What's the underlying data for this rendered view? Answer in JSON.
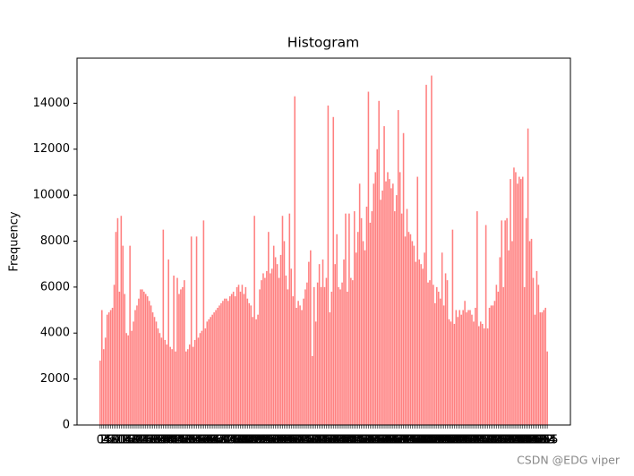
{
  "chart_data": {
    "type": "bar",
    "title": "Histogram",
    "y_label": "Frequency",
    "color": "#ff8080",
    "x": [
      0,
      1,
      2,
      3,
      4,
      5,
      6,
      7,
      8,
      9,
      10,
      11,
      12,
      13,
      14,
      15,
      16,
      17,
      18,
      19,
      20,
      21,
      22,
      23,
      24,
      25,
      26,
      27,
      28,
      29,
      30,
      31,
      32,
      33,
      34,
      35,
      36,
      37,
      38,
      39,
      40,
      41,
      42,
      43,
      44,
      45,
      46,
      47,
      48,
      49,
      50,
      51,
      52,
      53,
      54,
      55,
      56,
      57,
      58,
      59,
      60,
      61,
      62,
      63,
      64,
      65,
      66,
      67,
      68,
      69,
      70,
      71,
      72,
      73,
      74,
      75,
      76,
      77,
      78,
      79,
      80,
      81,
      82,
      83,
      84,
      85,
      86,
      87,
      88,
      89,
      90,
      91,
      92,
      93,
      94,
      95,
      96,
      97,
      98,
      99,
      100,
      101,
      102,
      103,
      104,
      105,
      106,
      107,
      108,
      109,
      110,
      111,
      112,
      113,
      114,
      115,
      116,
      117,
      118,
      119,
      120,
      121,
      122,
      123,
      124,
      125,
      126,
      127,
      128,
      129,
      130,
      131,
      132,
      133,
      134,
      135,
      136,
      137,
      138,
      139,
      140,
      141,
      142,
      143,
      144,
      145,
      146,
      147,
      148,
      149,
      150,
      151,
      152,
      153,
      154,
      155,
      156,
      157,
      158,
      159,
      160,
      161,
      162,
      163,
      164,
      165,
      166,
      167,
      168,
      169,
      170,
      171,
      172,
      173,
      174,
      175,
      176,
      177,
      178,
      179,
      180,
      181,
      182,
      183,
      184,
      185,
      186,
      187,
      188,
      189,
      190,
      191,
      192,
      193,
      194,
      195,
      196,
      197,
      198,
      199,
      200,
      201,
      202,
      203,
      204,
      205,
      206,
      207,
      208,
      209,
      210,
      211,
      212,
      213,
      214,
      215,
      216,
      217,
      218,
      219,
      220,
      221,
      222,
      223,
      224,
      225,
      226,
      227,
      228,
      229,
      230,
      231,
      232,
      233,
      234,
      235,
      236,
      237,
      238,
      239,
      240,
      241,
      242,
      243,
      244,
      245,
      246,
      247,
      248,
      249,
      250,
      251,
      252,
      253,
      254,
      255
    ],
    "values": [
      2800,
      5000,
      3300,
      3800,
      4800,
      4900,
      5000,
      5100,
      6100,
      8400,
      9000,
      5800,
      9100,
      7800,
      5700,
      4000,
      3900,
      7800,
      4100,
      4500,
      5000,
      5200,
      5500,
      5900,
      5900,
      5800,
      5700,
      5600,
      5400,
      5200,
      4900,
      4700,
      4500,
      4200,
      4000,
      3800,
      8500,
      3700,
      3500,
      7200,
      3400,
      3300,
      6500,
      3200,
      6400,
      5700,
      5900,
      6000,
      6300,
      3200,
      3300,
      3500,
      8200,
      3400,
      3700,
      8200,
      3800,
      4000,
      4100,
      8900,
      4200,
      4500,
      4600,
      4700,
      4800,
      4900,
      5000,
      5100,
      5200,
      5300,
      5400,
      5500,
      5500,
      5400,
      5600,
      5700,
      5800,
      5600,
      6000,
      6100,
      5800,
      6100,
      5700,
      6000,
      5500,
      5300,
      5200,
      4700,
      9100,
      4600,
      4800,
      5900,
      6300,
      6600,
      6400,
      6700,
      8400,
      6600,
      6800,
      7800,
      7300,
      7000,
      6400,
      7400,
      9100,
      8000,
      6500,
      5900,
      9200,
      6800,
      5600,
      14300,
      5100,
      5400,
      5200,
      5000,
      5500,
      5900,
      6200,
      7100,
      7600,
      3000,
      6000,
      4500,
      6200,
      7000,
      6000,
      7200,
      6000,
      6400,
      13900,
      4900,
      5800,
      13400,
      7000,
      8300,
      6000,
      5900,
      6200,
      7200,
      9200,
      5800,
      9200,
      6400,
      6300,
      9300,
      7500,
      8400,
      10500,
      9000,
      8000,
      7600,
      9500,
      14500,
      8800,
      9300,
      10500,
      11000,
      12000,
      14100,
      9800,
      10200,
      13000,
      10600,
      11000,
      10700,
      10300,
      10500,
      9300,
      10000,
      13700,
      11000,
      9200,
      12700,
      8200,
      9400,
      8400,
      8300,
      8000,
      7800,
      7100,
      10800,
      7200,
      7000,
      6800,
      7500,
      14800,
      6200,
      6300,
      15200,
      6100,
      5300,
      6000,
      5800,
      5500,
      7500,
      5200,
      6600,
      6300,
      4600,
      4500,
      8500,
      4400,
      5000,
      4700,
      5000,
      4800,
      5000,
      5400,
      4900,
      5000,
      5000,
      4800,
      4500,
      5100,
      9300,
      4300,
      4500,
      4400,
      4200,
      8700,
      4200,
      5100,
      5200,
      5200,
      5400,
      6100,
      5800,
      7300,
      8900,
      6000,
      8900,
      9000,
      7600,
      10700,
      8000,
      11200,
      11000,
      10500,
      10800,
      10700,
      10800,
      6000,
      9000,
      12900,
      8000,
      8100,
      6400,
      4800,
      6700,
      6100,
      4900,
      4900,
      5000,
      5100,
      3200
    ],
    "xlim": [
      -13.2,
      268.2
    ],
    "ylim": [
      0,
      15960
    ],
    "yticks": [
      0,
      2000,
      4000,
      6000,
      8000,
      10000,
      12000,
      14000
    ]
  },
  "watermark": "CSDN @EDG viper"
}
